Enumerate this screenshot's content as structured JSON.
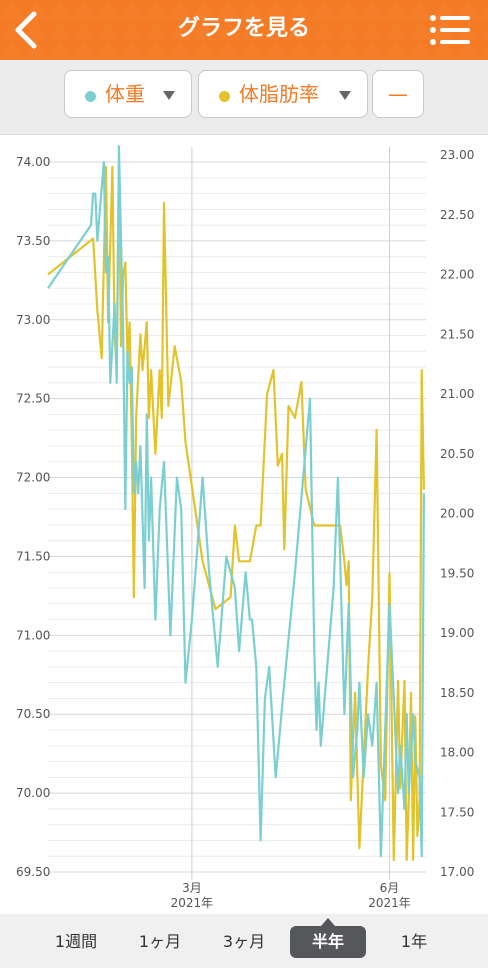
{
  "header": {
    "title": "グラフを見る"
  },
  "selector": {
    "series1_label": "体重",
    "series2_label": "体脂肪率",
    "third_label": "—"
  },
  "colors": {
    "accent": "#f47a24",
    "weight": "#7ccfd0",
    "body_fat": "#e2c32b"
  },
  "periods": [
    "1週間",
    "1ヶ月",
    "3ヶ月",
    "半年",
    "1年"
  ],
  "active_period": "半年",
  "chart_data": {
    "type": "line",
    "x_axis": {
      "ticks": [
        {
          "date": "2021-03-01",
          "month": "3月",
          "year": "2021年"
        },
        {
          "date": "2021-06-01",
          "month": "6月",
          "year": "2021年"
        }
      ],
      "range": [
        "2020-12-24",
        "2021-06-18"
      ]
    },
    "y_left": {
      "range": [
        69.5,
        74.0
      ],
      "ticks": [
        "69.50",
        "70.00",
        "70.50",
        "71.00",
        "71.50",
        "72.00",
        "72.50",
        "73.00",
        "73.50",
        "74.00"
      ]
    },
    "y_right": {
      "range": [
        17.0,
        23.0
      ],
      "ticks": [
        "17.00",
        "17.50",
        "18.00",
        "18.50",
        "19.00",
        "19.50",
        "20.00",
        "20.50",
        "21.00",
        "21.50",
        "22.00",
        "22.50",
        "23.00"
      ]
    },
    "series": [
      {
        "name": "体重",
        "axis": "left",
        "points": [
          [
            "2020-12-24",
            73.2
          ],
          [
            "2021-01-13",
            73.6
          ],
          [
            "2021-01-14",
            73.8
          ],
          [
            "2021-01-15",
            73.8
          ],
          [
            "2021-01-16",
            73.5
          ],
          [
            "2021-01-19",
            74.0
          ],
          [
            "2021-01-20",
            73.3
          ],
          [
            "2021-01-21",
            73.4
          ],
          [
            "2021-01-22",
            72.6
          ],
          [
            "2021-01-24",
            73.1
          ],
          [
            "2021-01-25",
            72.6
          ],
          [
            "2021-01-26",
            74.1
          ],
          [
            "2021-01-28",
            72.9
          ],
          [
            "2021-01-29",
            71.8
          ],
          [
            "2021-01-30",
            72.8
          ],
          [
            "2021-01-31",
            72.6
          ],
          [
            "2021-02-01",
            72.7
          ],
          [
            "2021-02-02",
            71.9
          ],
          [
            "2021-02-03",
            72.1
          ],
          [
            "2021-02-04",
            71.9
          ],
          [
            "2021-02-05",
            72.2
          ],
          [
            "2021-02-07",
            71.3
          ],
          [
            "2021-02-08",
            72.4
          ],
          [
            "2021-02-09",
            71.6
          ],
          [
            "2021-02-10",
            72.0
          ],
          [
            "2021-02-12",
            71.1
          ],
          [
            "2021-02-14",
            71.8
          ],
          [
            "2021-02-16",
            72.1
          ],
          [
            "2021-02-19",
            71.0
          ],
          [
            "2021-02-22",
            72.0
          ],
          [
            "2021-02-24",
            71.8
          ],
          [
            "2021-02-26",
            70.7
          ],
          [
            "2021-03-01",
            71.1
          ],
          [
            "2021-03-06",
            72.0
          ],
          [
            "2021-03-09",
            71.4
          ],
          [
            "2021-03-13",
            70.8
          ],
          [
            "2021-03-17",
            71.5
          ],
          [
            "2021-03-21",
            71.3
          ],
          [
            "2021-03-23",
            70.9
          ],
          [
            "2021-03-26",
            71.4
          ],
          [
            "2021-03-28",
            71.1
          ],
          [
            "2021-03-29",
            71.1
          ],
          [
            "2021-03-31",
            70.8
          ],
          [
            "2021-04-02",
            69.7
          ],
          [
            "2021-04-04",
            70.6
          ],
          [
            "2021-04-06",
            70.8
          ],
          [
            "2021-04-09",
            70.1
          ],
          [
            "2021-04-13",
            70.7
          ],
          [
            "2021-04-18",
            71.4
          ],
          [
            "2021-04-25",
            72.5
          ],
          [
            "2021-04-27",
            70.9
          ],
          [
            "2021-04-28",
            70.4
          ],
          [
            "2021-04-29",
            70.7
          ],
          [
            "2021-04-30",
            70.3
          ],
          [
            "2021-05-03",
            70.8
          ],
          [
            "2021-05-06",
            71.3
          ],
          [
            "2021-05-08",
            72.0
          ],
          [
            "2021-05-11",
            70.5
          ],
          [
            "2021-05-13",
            71.2
          ],
          [
            "2021-05-15",
            70.1
          ],
          [
            "2021-05-17",
            70.4
          ],
          [
            "2021-05-18",
            70.7
          ],
          [
            "2021-05-20",
            70.1
          ],
          [
            "2021-05-22",
            70.5
          ],
          [
            "2021-05-24",
            70.3
          ],
          [
            "2021-05-26",
            70.7
          ],
          [
            "2021-05-28",
            69.6
          ],
          [
            "2021-05-30",
            70.4
          ],
          [
            "2021-06-01",
            71.2
          ],
          [
            "2021-06-03",
            70.6
          ],
          [
            "2021-06-05",
            70.0
          ],
          [
            "2021-06-06",
            70.3
          ],
          [
            "2021-06-08",
            69.9
          ],
          [
            "2021-06-09",
            70.5
          ],
          [
            "2021-06-10",
            70.0
          ],
          [
            "2021-06-12",
            70.5
          ],
          [
            "2021-06-13",
            70.2
          ],
          [
            "2021-06-15",
            70.1
          ],
          [
            "2021-06-16",
            69.6
          ],
          [
            "2021-06-17",
            71.9
          ]
        ]
      },
      {
        "name": "体脂肪率",
        "axis": "right",
        "points": [
          [
            "2020-12-24",
            22.0
          ],
          [
            "2021-01-14",
            22.3
          ],
          [
            "2021-01-16",
            21.7
          ],
          [
            "2021-01-18",
            21.3
          ],
          [
            "2021-01-20",
            22.9
          ],
          [
            "2021-01-21",
            21.6
          ],
          [
            "2021-01-23",
            22.9
          ],
          [
            "2021-01-24",
            21.5
          ],
          [
            "2021-01-25",
            21.2
          ],
          [
            "2021-01-26",
            22.9
          ],
          [
            "2021-01-27",
            21.4
          ],
          [
            "2021-01-28",
            22.0
          ],
          [
            "2021-01-29",
            22.1
          ],
          [
            "2021-01-30",
            21.3
          ],
          [
            "2021-01-31",
            21.6
          ],
          [
            "2021-02-01",
            20.6
          ],
          [
            "2021-02-02",
            19.3
          ],
          [
            "2021-02-03",
            20.8
          ],
          [
            "2021-02-05",
            21.5
          ],
          [
            "2021-02-06",
            21.2
          ],
          [
            "2021-02-08",
            21.6
          ],
          [
            "2021-02-09",
            20.8
          ],
          [
            "2021-02-10",
            21.2
          ],
          [
            "2021-02-12",
            20.5
          ],
          [
            "2021-02-14",
            21.2
          ],
          [
            "2021-02-15",
            20.8
          ],
          [
            "2021-02-16",
            22.6
          ],
          [
            "2021-02-18",
            20.9
          ],
          [
            "2021-02-21",
            21.4
          ],
          [
            "2021-02-24",
            21.1
          ],
          [
            "2021-02-26",
            20.6
          ],
          [
            "2021-03-06",
            19.6
          ],
          [
            "2021-03-12",
            19.2
          ],
          [
            "2021-03-19",
            19.3
          ],
          [
            "2021-03-21",
            19.9
          ],
          [
            "2021-03-23",
            19.6
          ],
          [
            "2021-03-28",
            19.6
          ],
          [
            "2021-03-31",
            19.9
          ],
          [
            "2021-04-02",
            19.9
          ],
          [
            "2021-04-05",
            21.0
          ],
          [
            "2021-04-08",
            21.2
          ],
          [
            "2021-04-10",
            20.4
          ],
          [
            "2021-04-12",
            20.5
          ],
          [
            "2021-04-13",
            19.7
          ],
          [
            "2021-04-15",
            20.9
          ],
          [
            "2021-04-18",
            20.8
          ],
          [
            "2021-04-21",
            21.1
          ],
          [
            "2021-04-23",
            20.2
          ],
          [
            "2021-04-27",
            19.9
          ],
          [
            "2021-05-05",
            19.9
          ],
          [
            "2021-05-09",
            19.9
          ],
          [
            "2021-05-11",
            19.6
          ],
          [
            "2021-05-12",
            19.4
          ],
          [
            "2021-05-13",
            19.6
          ],
          [
            "2021-05-14",
            17.6
          ],
          [
            "2021-05-16",
            18.5
          ],
          [
            "2021-05-18",
            17.2
          ],
          [
            "2021-05-22",
            18.7
          ],
          [
            "2021-05-24",
            19.3
          ],
          [
            "2021-05-26",
            20.7
          ],
          [
            "2021-05-28",
            17.9
          ],
          [
            "2021-05-30",
            17.6
          ],
          [
            "2021-06-01",
            19.5
          ],
          [
            "2021-06-03",
            17.1
          ],
          [
            "2021-06-05",
            18.6
          ],
          [
            "2021-06-06",
            17.7
          ],
          [
            "2021-06-08",
            18.6
          ],
          [
            "2021-06-09",
            17.1
          ],
          [
            "2021-06-10",
            17.6
          ],
          [
            "2021-06-11",
            18.5
          ],
          [
            "2021-06-12",
            17.1
          ],
          [
            "2021-06-13",
            18.3
          ],
          [
            "2021-06-14",
            17.3
          ],
          [
            "2021-06-15",
            17.6
          ],
          [
            "2021-06-16",
            21.2
          ],
          [
            "2021-06-17",
            20.2
          ]
        ]
      }
    ],
    "grid": true
  }
}
